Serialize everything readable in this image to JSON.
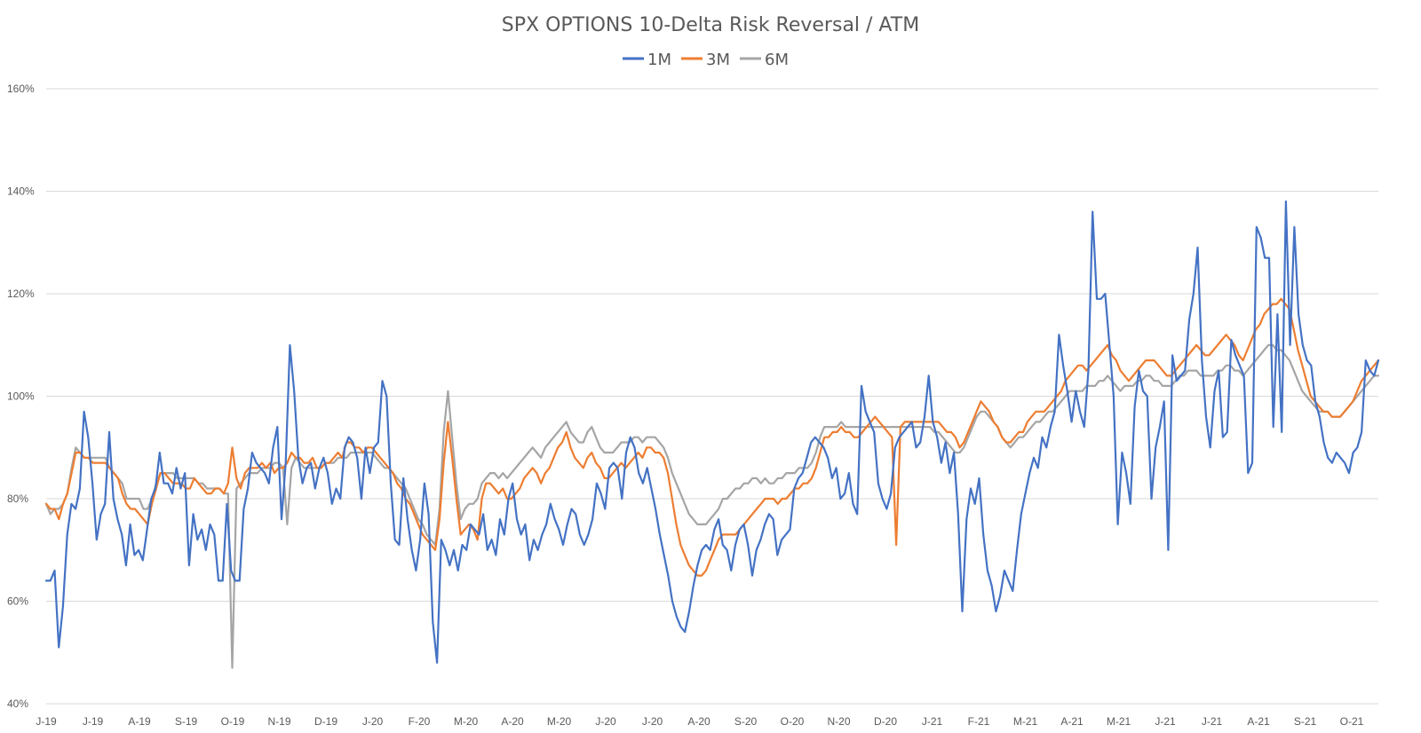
{
  "chart_data": {
    "type": "line",
    "title": "SPX OPTIONS 10-Delta Risk Reversal / ATM",
    "xlabel": "",
    "ylabel": "",
    "ylim": [
      40,
      160
    ],
    "y_ticks": [
      40,
      60,
      80,
      100,
      120,
      140,
      160
    ],
    "y_tick_labels": [
      "40%",
      "60%",
      "80%",
      "100%",
      "120%",
      "140%",
      "160%"
    ],
    "x_tick_labels": [
      "J-19",
      "J-19",
      "A-19",
      "S-19",
      "O-19",
      "N-19",
      "D-19",
      "J-20",
      "F-20",
      "M-20",
      "A-20",
      "M-20",
      "J-20",
      "J-20",
      "A-20",
      "S-20",
      "O-20",
      "N-20",
      "D-20",
      "J-21",
      "F-21",
      "M-21",
      "A-21",
      "M-21",
      "J-21",
      "J-21",
      "A-21",
      "S-21",
      "O-21"
    ],
    "legend_position": "top-center",
    "series": [
      {
        "name": "1M",
        "color": "#4472c4",
        "values": [
          64,
          64,
          66,
          51,
          59,
          73,
          79,
          78,
          82,
          97,
          92,
          83,
          72,
          77,
          79,
          93,
          80,
          76,
          73,
          67,
          75,
          69,
          70,
          68,
          74,
          80,
          82,
          89,
          83,
          83,
          81,
          86,
          82,
          85,
          67,
          77,
          72,
          74,
          70,
          75,
          73,
          64,
          64,
          79,
          66,
          64,
          64,
          78,
          82,
          89,
          87,
          86,
          85,
          83,
          90,
          94,
          76,
          87,
          110,
          101,
          88,
          83,
          86,
          87,
          82,
          86,
          88,
          85,
          79,
          82,
          80,
          90,
          92,
          91,
          88,
          80,
          90,
          85,
          90,
          91,
          103,
          100,
          83,
          72,
          71,
          84,
          76,
          70,
          66,
          72,
          83,
          77,
          56,
          48,
          72,
          70,
          67,
          70,
          66,
          71,
          70,
          75,
          74,
          73,
          77,
          70,
          72,
          69,
          76,
          73,
          80,
          83,
          76,
          73,
          75,
          68,
          72,
          70,
          73,
          75,
          79,
          76,
          74,
          71,
          75,
          78,
          77,
          73,
          71,
          73,
          76,
          83,
          81,
          78,
          86,
          87,
          86,
          80,
          89,
          92,
          90,
          85,
          83,
          86,
          82,
          78,
          73,
          69,
          65,
          60,
          57,
          55,
          54,
          58,
          63,
          67,
          70,
          71,
          70,
          74,
          76,
          71,
          70,
          66,
          71,
          74,
          75,
          71,
          65,
          70,
          72,
          75,
          77,
          76,
          69,
          72,
          73,
          74,
          82,
          84,
          85,
          88,
          91,
          92,
          91,
          90,
          88,
          84,
          86,
          80,
          81,
          85,
          79,
          77,
          102,
          97,
          95,
          93,
          83,
          80,
          78,
          81,
          90,
          92,
          93,
          94,
          95,
          90,
          91,
          96,
          104,
          95,
          92,
          87,
          91,
          85,
          89,
          77,
          58,
          76,
          82,
          79,
          84,
          73,
          66,
          63,
          58,
          61,
          66,
          64,
          62,
          70,
          77,
          81,
          85,
          88,
          86,
          92,
          90,
          94,
          97,
          112,
          106,
          101,
          95,
          101,
          97,
          94,
          105,
          136,
          119,
          119,
          120,
          110,
          100,
          75,
          89,
          85,
          79,
          98,
          105,
          101,
          100,
          80,
          90,
          94,
          99,
          70,
          108,
          103,
          104,
          105,
          115,
          120,
          129,
          107,
          96,
          90,
          101,
          105,
          92,
          93,
          111,
          108,
          106,
          104,
          85,
          87,
          133,
          131,
          127,
          127,
          94,
          116,
          93,
          138,
          110,
          133,
          116,
          110,
          107,
          106,
          99,
          96,
          91,
          88,
          87,
          89,
          88,
          87,
          85,
          89,
          90,
          93,
          107,
          105,
          104,
          107
        ]
      },
      {
        "name": "3M",
        "color": "#ed7d31",
        "values": [
          79,
          78,
          78,
          76,
          79,
          81,
          85,
          89,
          89,
          88,
          88,
          87,
          87,
          87,
          87,
          86,
          85,
          84,
          81,
          79,
          78,
          78,
          77,
          76,
          75,
          79,
          82,
          85,
          85,
          84,
          83,
          83,
          83,
          82,
          82,
          84,
          83,
          82,
          81,
          81,
          82,
          82,
          81,
          83,
          90,
          84,
          82,
          85,
          86,
          86,
          86,
          87,
          86,
          87,
          85,
          86,
          86,
          87,
          89,
          88,
          88,
          87,
          87,
          88,
          86,
          86,
          87,
          87,
          88,
          89,
          88,
          91,
          91,
          90,
          90,
          89,
          90,
          90,
          89,
          88,
          87,
          86,
          85,
          83,
          82,
          80,
          79,
          77,
          75,
          73,
          72,
          71,
          70,
          76,
          87,
          95,
          88,
          80,
          73,
          74,
          75,
          74,
          72,
          80,
          83,
          83,
          82,
          81,
          82,
          80,
          80,
          81,
          82,
          84,
          85,
          86,
          85,
          83,
          85,
          86,
          88,
          90,
          91,
          93,
          90,
          88,
          87,
          86,
          88,
          89,
          87,
          86,
          84,
          84,
          85,
          86,
          87,
          86,
          87,
          88,
          89,
          88,
          90,
          90,
          89,
          89,
          88,
          85,
          80,
          75,
          71,
          69,
          67,
          66,
          65,
          65,
          66,
          68,
          70,
          72,
          73,
          73,
          73,
          73,
          74,
          75,
          76,
          77,
          78,
          79,
          80,
          80,
          80,
          79,
          80,
          80,
          81,
          82,
          82,
          83,
          83,
          84,
          86,
          89,
          92,
          92,
          93,
          93,
          94,
          93,
          93,
          92,
          92,
          93,
          94,
          95,
          96,
          95,
          94,
          93,
          92,
          71,
          94,
          95,
          95,
          95,
          95,
          95,
          95,
          95,
          95,
          95,
          94,
          93,
          93,
          92,
          90,
          91,
          93,
          95,
          97,
          99,
          98,
          97,
          95,
          94,
          92,
          91,
          91,
          92,
          93,
          93,
          95,
          96,
          97,
          97,
          97,
          98,
          99,
          100,
          101,
          103,
          104,
          105,
          106,
          106,
          105,
          106,
          107,
          108,
          109,
          110,
          108,
          107,
          105,
          104,
          103,
          104,
          105,
          106,
          107,
          107,
          107,
          106,
          105,
          104,
          104,
          105,
          106,
          107,
          108,
          109,
          110,
          109,
          108,
          108,
          109,
          110,
          111,
          112,
          111,
          110,
          108,
          107,
          109,
          111,
          113,
          114,
          116,
          117,
          118,
          118,
          119,
          118,
          117,
          113,
          109,
          106,
          103,
          100,
          99,
          98,
          97,
          97,
          96,
          96,
          96,
          97,
          98,
          99,
          101,
          103,
          104,
          105,
          106,
          107
        ]
      },
      {
        "name": "6M",
        "color": "#a5a5a5",
        "values": [
          79,
          77,
          78,
          78,
          79,
          81,
          86,
          90,
          89,
          88,
          88,
          88,
          88,
          88,
          88,
          86,
          85,
          84,
          83,
          80,
          80,
          80,
          80,
          78,
          78,
          80,
          83,
          85,
          85,
          85,
          85,
          84,
          84,
          84,
          84,
          84,
          83,
          83,
          82,
          82,
          82,
          82,
          81,
          81,
          47,
          82,
          83,
          84,
          85,
          85,
          85,
          86,
          86,
          86,
          87,
          87,
          86,
          75,
          86,
          88,
          87,
          86,
          86,
          86,
          86,
          86,
          87,
          87,
          87,
          88,
          88,
          88,
          89,
          89,
          89,
          89,
          89,
          89,
          88,
          87,
          86,
          86,
          85,
          84,
          83,
          82,
          80,
          78,
          76,
          75,
          73,
          72,
          71,
          78,
          93,
          101,
          92,
          83,
          76,
          78,
          79,
          79,
          80,
          83,
          84,
          85,
          85,
          84,
          85,
          84,
          85,
          86,
          87,
          88,
          89,
          90,
          89,
          88,
          90,
          91,
          92,
          93,
          94,
          95,
          93,
          92,
          91,
          91,
          93,
          94,
          92,
          90,
          89,
          89,
          89,
          90,
          91,
          91,
          91,
          92,
          92,
          91,
          92,
          92,
          92,
          91,
          90,
          88,
          85,
          83,
          81,
          79,
          77,
          76,
          75,
          75,
          75,
          76,
          77,
          78,
          80,
          80,
          81,
          82,
          82,
          83,
          83,
          84,
          84,
          83,
          84,
          83,
          83,
          84,
          84,
          85,
          85,
          85,
          86,
          86,
          86,
          87,
          89,
          92,
          94,
          94,
          94,
          94,
          95,
          94,
          94,
          94,
          94,
          94,
          94,
          94,
          94,
          94,
          94,
          94,
          94,
          94,
          94,
          94,
          94,
          94,
          94,
          94,
          94,
          94,
          93,
          93,
          92,
          91,
          90,
          89,
          89,
          90,
          92,
          94,
          96,
          97,
          97,
          96,
          95,
          94,
          92,
          91,
          90,
          91,
          92,
          92,
          93,
          94,
          95,
          95,
          96,
          97,
          97,
          98,
          99,
          100,
          101,
          101,
          101,
          101,
          102,
          102,
          102,
          103,
          103,
          104,
          103,
          102,
          101,
          102,
          102,
          102,
          103,
          103,
          104,
          104,
          103,
          103,
          102,
          102,
          102,
          103,
          104,
          104,
          105,
          105,
          105,
          104,
          104,
          104,
          104,
          105,
          105,
          106,
          106,
          105,
          105,
          104,
          105,
          106,
          107,
          108,
          109,
          110,
          110,
          109,
          109,
          108,
          107,
          105,
          103,
          101,
          100,
          99,
          98,
          97,
          97,
          97,
          96,
          96,
          96,
          97,
          98,
          99,
          100,
          101,
          102,
          103,
          104,
          104
        ]
      }
    ]
  }
}
